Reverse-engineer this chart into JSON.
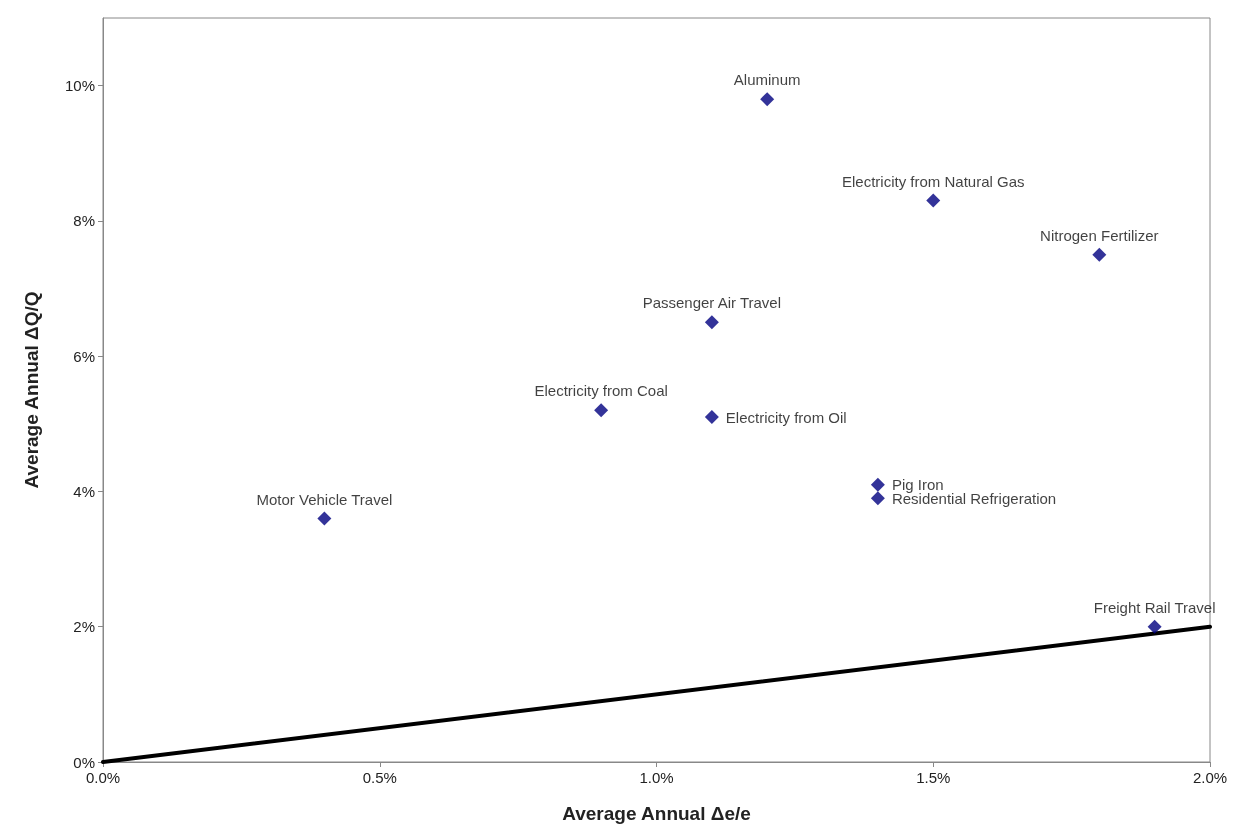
{
  "chart_data": {
    "type": "scatter",
    "xlabel": "Average Annual Δe/e",
    "ylabel": "Average Annual ΔQ/Q",
    "xlim": [
      0,
      2
    ],
    "ylim": [
      0,
      11
    ],
    "xticks": [
      {
        "value": 0,
        "label": "0.0%"
      },
      {
        "value": 0.5,
        "label": "0.5%"
      },
      {
        "value": 1,
        "label": "1.0%"
      },
      {
        "value": 1.5,
        "label": "1.5%"
      },
      {
        "value": 2,
        "label": "2.0%"
      }
    ],
    "yticks": [
      {
        "value": 0,
        "label": "0%"
      },
      {
        "value": 2,
        "label": "2%"
      },
      {
        "value": 4,
        "label": "4%"
      },
      {
        "value": 6,
        "label": "6%"
      },
      {
        "value": 8,
        "label": "8%"
      },
      {
        "value": 10,
        "label": "10%"
      }
    ],
    "grid": false,
    "series": [
      {
        "color": "#000080",
        "marker": "diamond",
        "x": [
          1.2,
          1.5,
          1.8,
          1.1,
          0.9,
          1.1,
          1.4,
          1.4,
          0.4,
          1.9
        ],
        "values": [
          9.8,
          8.3,
          7.5,
          6.5,
          5.2,
          5.1,
          4.1,
          3.9,
          3.6,
          2.0
        ]
      },
      {
        "type": "line",
        "color": "#000000",
        "marker": "none",
        "line_style": "solid",
        "x": [
          0,
          2
        ],
        "values": [
          0,
          2
        ]
      }
    ],
    "annotations": [
      {
        "text": "Aluminum",
        "x": 1.2,
        "y": 9.8
      },
      {
        "text": "Electricity from Natural Gas",
        "x": 1.5,
        "y": 8.3
      },
      {
        "text": "Nitrogen Fertilizer",
        "x": 1.8,
        "y": 7.5
      },
      {
        "text": "Passenger Air Travel",
        "x": 1.1,
        "y": 6.5
      },
      {
        "text": "Electricity from Coal",
        "x": 0.9,
        "y": 5.2
      },
      {
        "text": "Electricity from Oil",
        "x": 1.1,
        "y": 5.1
      },
      {
        "text": "Pig Iron",
        "x": 1.4,
        "y": 4.1
      },
      {
        "text": "Residential Refrigeration",
        "x": 1.4,
        "y": 3.9
      },
      {
        "text": "Motor Vehicle Travel",
        "x": 0.4,
        "y": 3.6
      },
      {
        "text": "Freight Rail Travel",
        "x": 1.9,
        "y": 2.0
      }
    ]
  }
}
